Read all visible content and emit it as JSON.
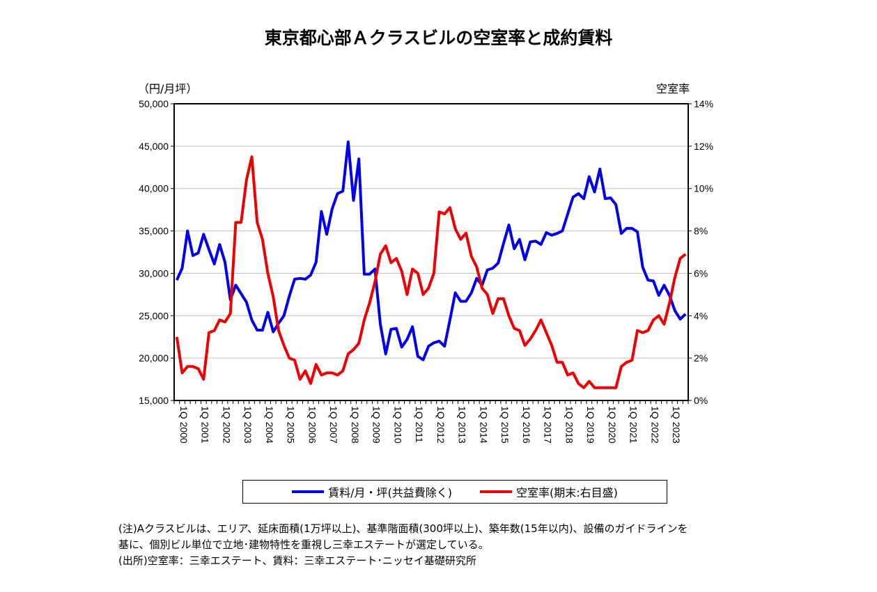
{
  "chart_data": {
    "type": "line",
    "title": "東京都心部Ａクラスビルの空室率と成約賃料",
    "ylabel_left": "（円/月坪）",
    "ylabel_right": "空室率",
    "ylim_left": [
      15000,
      50000
    ],
    "ylim_right": [
      0,
      14
    ],
    "yticks_left": [
      "15,000",
      "20,000",
      "25,000",
      "30,000",
      "35,000",
      "40,000",
      "45,000",
      "50,000"
    ],
    "yticks_right": [
      "0%",
      "2%",
      "4%",
      "6%",
      "8%",
      "10%",
      "12%",
      "14%"
    ],
    "xtick_labels": [
      "1Q 2000",
      "1Q 2001",
      "1Q 2002",
      "1Q 2003",
      "1Q 2004",
      "1Q 2005",
      "1Q 2006",
      "1Q 2007",
      "1Q 2008",
      "1Q 2009",
      "1Q 2010",
      "1Q 2011",
      "1Q 2012",
      "1Q 2013",
      "1Q 2014",
      "1Q 2015",
      "1Q 2016",
      "1Q 2017",
      "1Q 2018",
      "1Q 2019",
      "1Q 2020",
      "1Q 2021",
      "1Q 2022",
      "1Q 2023"
    ],
    "x_range": [
      "1Q 2000",
      "4Q 2023"
    ],
    "grid": "horizontal",
    "legend_placement": "bottom",
    "series": [
      {
        "name": "賃料/月・坪(共益費除く)",
        "axis": "left",
        "color": "#0000ee",
        "values": [
          29200,
          30600,
          35000,
          32100,
          32400,
          34600,
          32800,
          31100,
          33400,
          31300,
          26900,
          28600,
          27600,
          26600,
          24500,
          23300,
          23300,
          25400,
          23100,
          24100,
          25000,
          27300,
          29300,
          29400,
          29300,
          29800,
          31300,
          37300,
          34600,
          37600,
          39400,
          39700,
          45500,
          38600,
          43500,
          29900,
          29900,
          30500,
          24000,
          20500,
          23400,
          23500,
          21300,
          22200,
          23700,
          20200,
          19800,
          21400,
          21800,
          22000,
          21400,
          24500,
          27700,
          26700,
          26700,
          27700,
          29400,
          28600,
          30400,
          30600,
          31200,
          33500,
          35700,
          32900,
          34000,
          31600,
          33700,
          33800,
          33400,
          34800,
          34500,
          34700,
          35000,
          37000,
          39000,
          39400,
          38800,
          41400,
          39600,
          42300,
          38800,
          38900,
          38100,
          34700,
          35300,
          35300,
          34900,
          30700,
          29200,
          29100,
          27400,
          28600,
          27400,
          25600,
          24600,
          25200
        ]
      },
      {
        "name": "空室率(期末:右目盛)",
        "axis": "right",
        "color": "#ee0000",
        "values": [
          3.0,
          1.3,
          1.6,
          1.6,
          1.5,
          1.0,
          3.2,
          3.3,
          3.8,
          3.7,
          4.1,
          8.4,
          8.4,
          10.4,
          11.5,
          8.4,
          7.6,
          6.0,
          4.9,
          3.3,
          2.6,
          2.0,
          1.9,
          1.0,
          1.4,
          0.8,
          1.7,
          1.2,
          1.3,
          1.3,
          1.2,
          1.4,
          2.2,
          2.4,
          2.7,
          3.8,
          4.6,
          5.6,
          6.9,
          7.3,
          6.5,
          6.7,
          6.1,
          5.0,
          6.2,
          6.0,
          5.0,
          5.3,
          6.0,
          8.9,
          8.8,
          9.1,
          8.1,
          7.6,
          7.9,
          6.8,
          6.3,
          5.3,
          5.0,
          4.1,
          4.8,
          4.8,
          4.0,
          3.4,
          3.3,
          2.6,
          2.9,
          3.3,
          3.8,
          3.2,
          2.6,
          1.8,
          1.8,
          1.2,
          1.3,
          0.8,
          0.6,
          0.9,
          0.6,
          0.6,
          0.6,
          0.6,
          0.6,
          1.6,
          1.8,
          1.9,
          3.3,
          3.2,
          3.3,
          3.8,
          4.0,
          3.6,
          4.6,
          5.8,
          6.7,
          6.9
        ]
      }
    ]
  },
  "notes": [
    "(注)Aクラスビルは、エリア、延床面積(1万坪以上)、基準階面積(300坪以上)、築年数(15年以内)、設備のガイドラインを",
    "基に、個別ビル単位で立地･建物特性を重視し三幸エステートが選定している。",
    "(出所)空室率：三幸エステート、賃料：三幸エステート･ニッセイ基礎研究所"
  ]
}
